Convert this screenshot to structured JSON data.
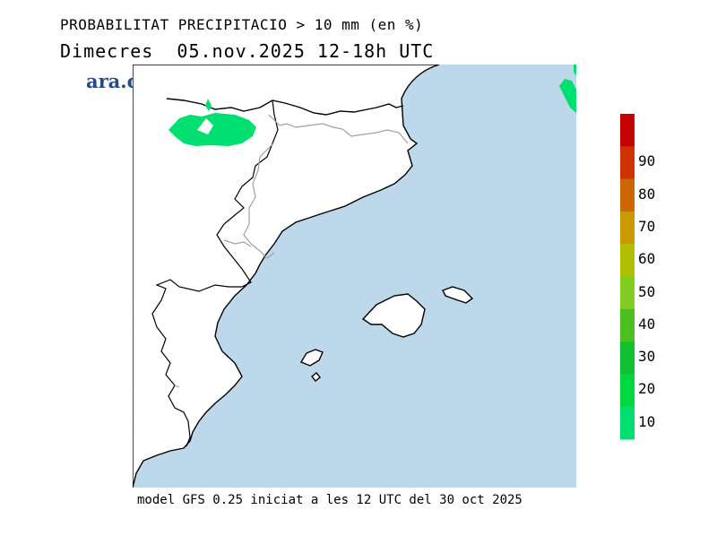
{
  "header": {
    "title": "PROBABILITAT PRECIPITACIO > 10 mm (en %)",
    "subtitle": "Dimecres  05.nov.2025 12-18h UTC"
  },
  "logo": {
    "text": "ara.cat",
    "color": "#1f4f8a"
  },
  "footer": {
    "text": "model GFS 0.25 iniciat a les 12 UTC del 30 oct 2025"
  },
  "colorbar": {
    "labels": [
      "90",
      "80",
      "70",
      "60",
      "50",
      "40",
      "30",
      "20",
      "10"
    ],
    "colors": [
      "#c40000",
      "#cc3300",
      "#cc6600",
      "#cc9900",
      "#b0c000",
      "#80cc20",
      "#4cc020",
      "#10c030",
      "#00d840",
      "#00e070"
    ]
  },
  "map": {
    "sea_color": "#bcd8ea",
    "land_color": "#ffffff",
    "precip_color": "#00e070"
  }
}
